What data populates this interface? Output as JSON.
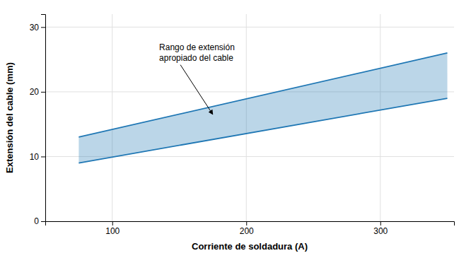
{
  "chart_data": {
    "type": "area_between",
    "xlabel": "Corriente de soldadura (A)",
    "ylabel": "Extensión del cable (mm)",
    "x": [
      75,
      350
    ],
    "series": [
      {
        "values": [
          13.0,
          26.0
        ]
      },
      {
        "values": [
          9.0,
          19.0
        ]
      }
    ],
    "xlim": [
      50,
      355
    ],
    "ylim": [
      0,
      32
    ],
    "xticks": [
      100,
      200,
      300
    ],
    "yticks": [
      0,
      10,
      20,
      30
    ],
    "grid": true,
    "annotations": [
      {
        "text": [
          "Rango de extensión",
          "apropiado del cable"
        ],
        "xy": [
          175,
          16.5
        ],
        "xytext": [
          135,
          24.5
        ]
      }
    ]
  }
}
